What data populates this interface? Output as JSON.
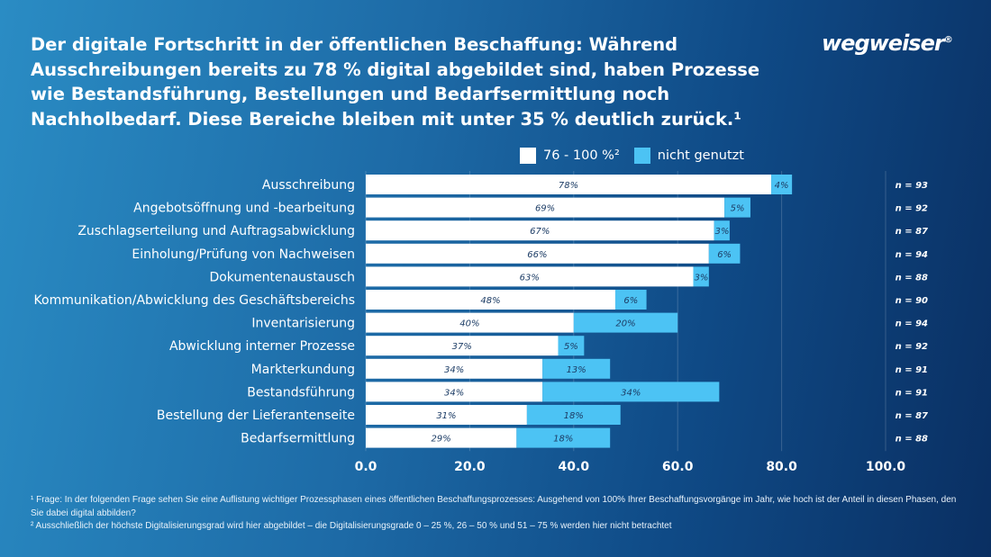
{
  "title": "Der digitale Fortschritt in der öffentlichen Beschaffung: Während Ausschreibungen bereits zu 78 % digital abgebildet sind, haben Prozesse wie Bestandsführung, Bestellungen und Bedarfsermittlung noch Nachholbedarf. Diese Bereiche bleiben mit unter 35 % deutlich zurück.¹",
  "logo": "wegweiser",
  "footnotes": [
    "¹ Frage: In der folgenden Frage sehen Sie eine Auflistung wichtiger Prozessphasen eines öffentlichen Beschaffungsprozesses: Ausgehend von 100% Ihrer Beschaffungsvorgänge im Jahr, wie hoch ist der Anteil in diesen Phasen, den Sie dabei digital abbilden?",
    "² Ausschließlich der höchste Digitalisierungsgrad wird hier abgebildet – die Digitalisierungsgrade 0 – 25 %, 26 – 50 % und 51 – 75 % werden hier nicht betrachtet"
  ],
  "chart_data": {
    "type": "bar",
    "orientation": "horizontal",
    "stacked": true,
    "categories": [
      "Ausschreibung",
      "Angebotsöffnung und -bearbeitung",
      "Zuschlagserteilung und Auftragsabwicklung",
      "Einholung/Prüfung von Nachweisen",
      "Dokumentenaustausch",
      "Kommunikation/Abwicklung des Geschäftsbereichs",
      "Inventarisierung",
      "Abwicklung interner Prozesse",
      "Markterkundung",
      "Bestandsführung",
      "Bestellung der Lieferantenseite",
      "Bedarfsermittlung"
    ],
    "series": [
      {
        "name": "76 - 100 %²",
        "color": "#ffffff",
        "values": [
          78,
          69,
          67,
          66,
          63,
          48,
          40,
          37,
          34,
          34,
          31,
          29
        ]
      },
      {
        "name": "nicht genutzt",
        "color": "#4cc3f4",
        "values": [
          4,
          5,
          3,
          6,
          3,
          6,
          20,
          5,
          13,
          34,
          18,
          18
        ]
      }
    ],
    "n_labels": [
      "n = 93",
      "n = 92",
      "n = 87",
      "n = 94",
      "n = 88",
      "n = 90",
      "n = 94",
      "n = 92",
      "n = 91",
      "n = 91",
      "n = 87",
      "n = 88"
    ],
    "xlim": [
      0,
      100
    ],
    "xticks": [
      "0.0",
      "20.0",
      "40.0",
      "60.0",
      "80.0",
      "100.0"
    ],
    "grid": true,
    "legend": "top"
  }
}
